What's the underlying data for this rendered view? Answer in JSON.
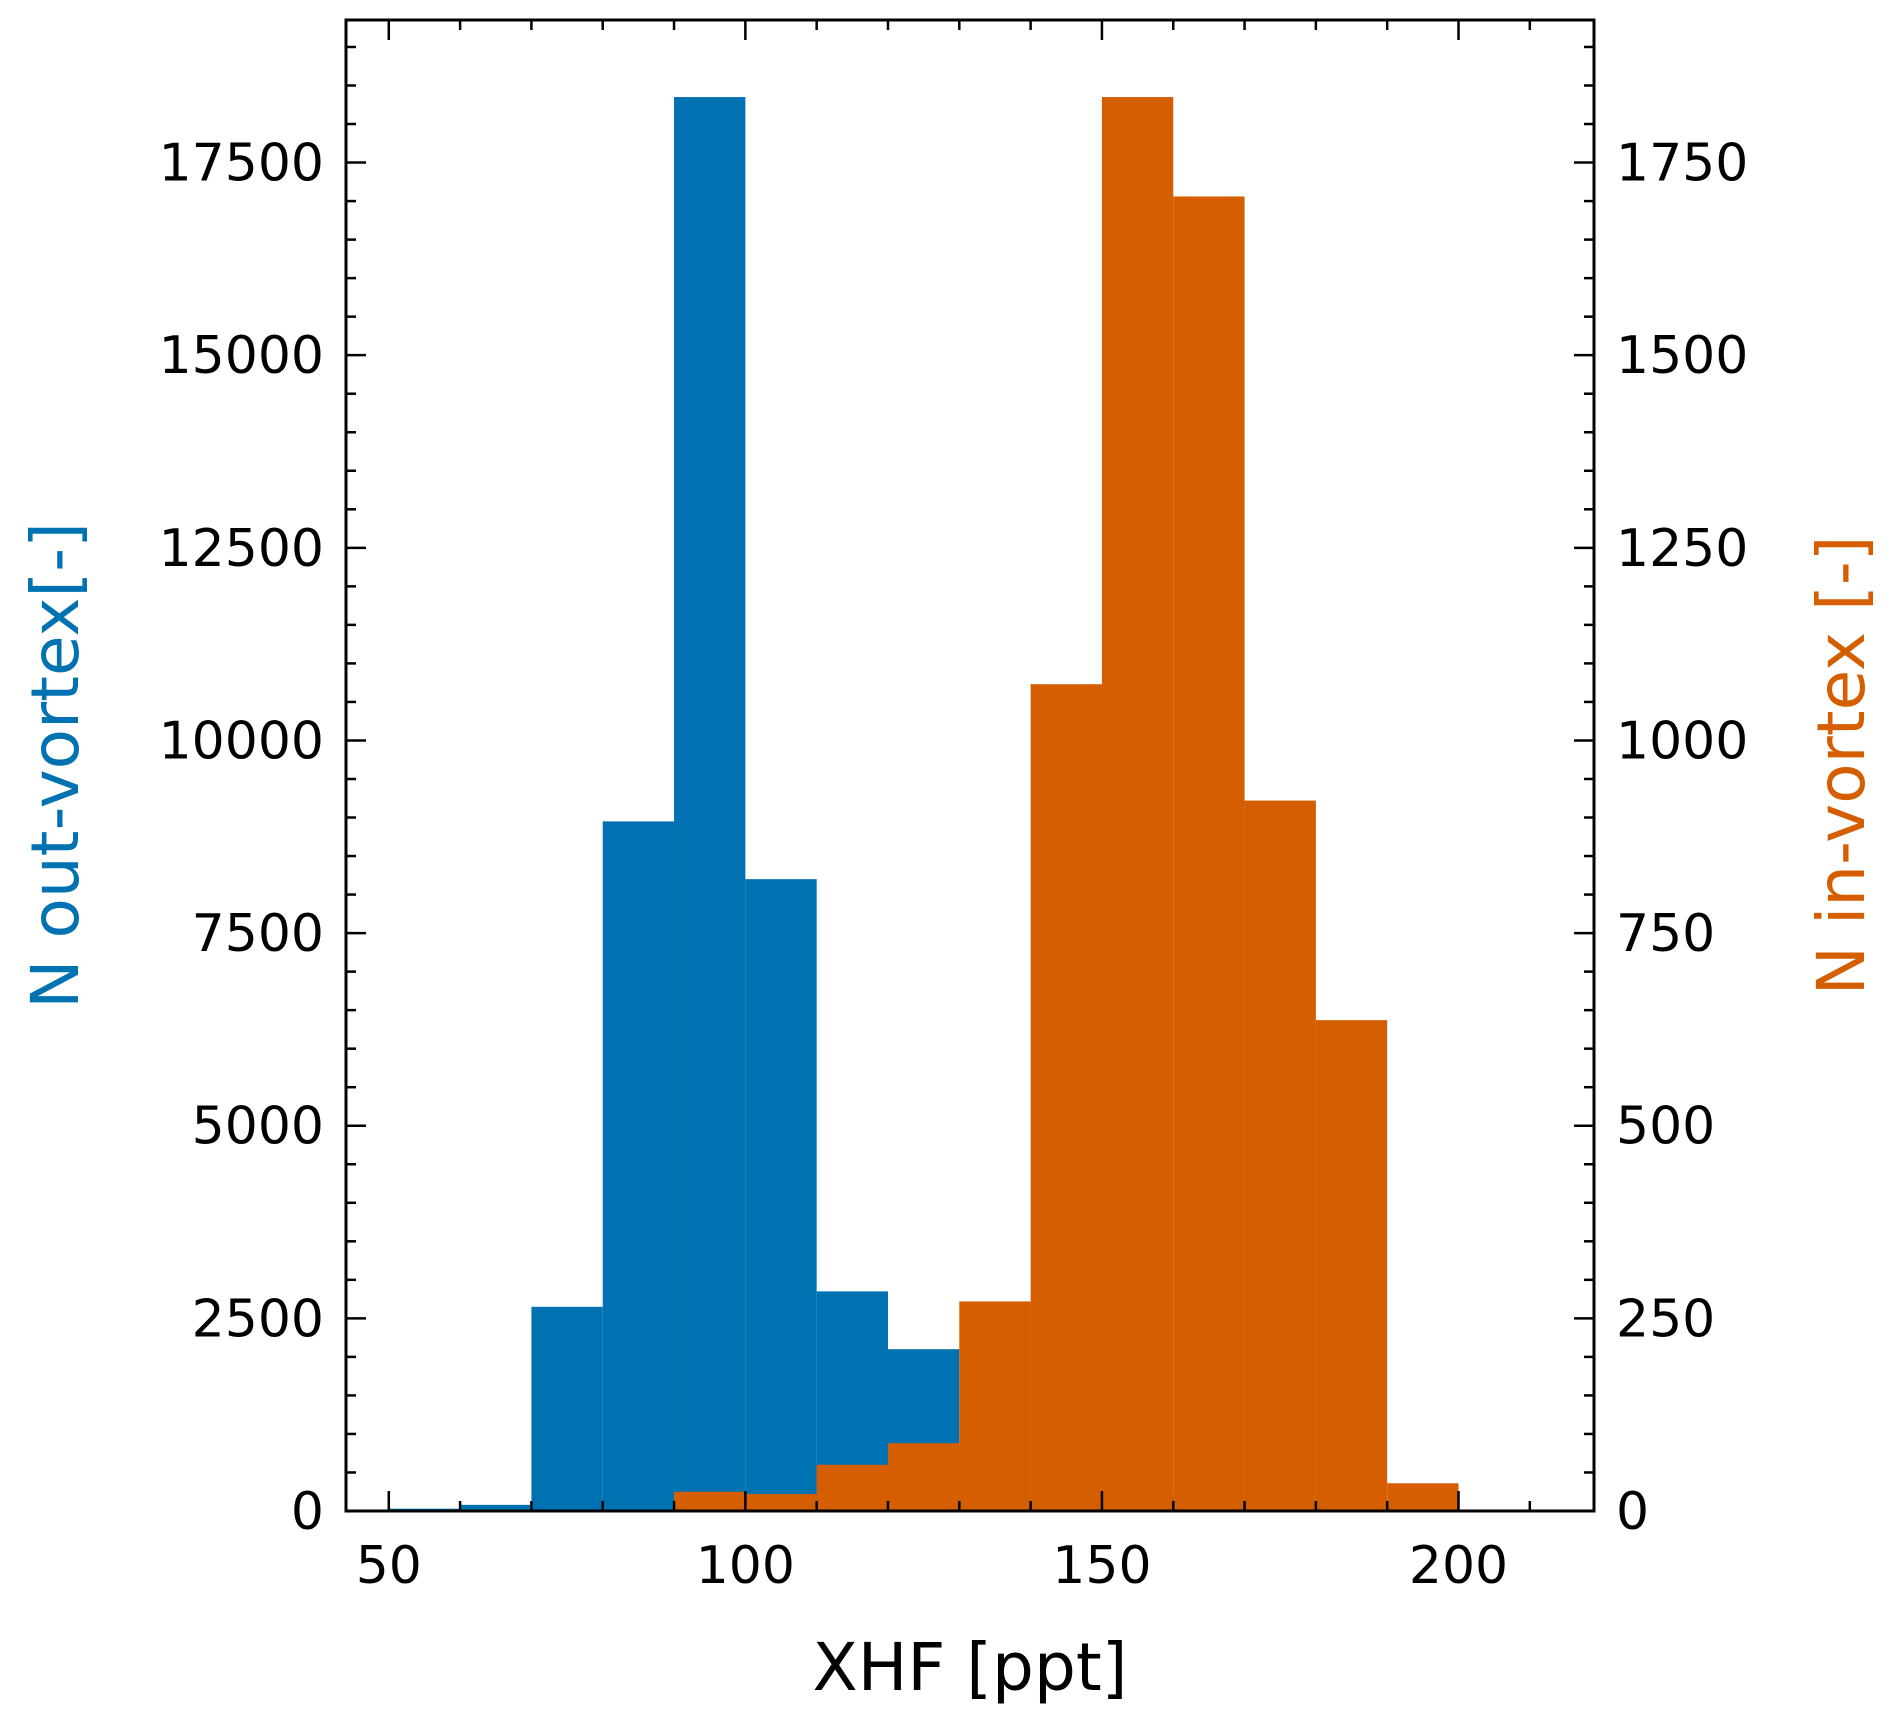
{
  "chart_data": {
    "type": "bar",
    "xlabel": "XHF [ppt]",
    "ylabel_left": "N out-vortex[-]",
    "ylabel_right": "N in-vortex [-]",
    "xlim": [
      44,
      219
    ],
    "ylim_left": [
      0,
      19350
    ],
    "ylim_right": [
      0,
      1935
    ],
    "xticks": [
      50,
      100,
      150,
      200
    ],
    "yticks_left": [
      0,
      2500,
      5000,
      7500,
      10000,
      12500,
      15000,
      17500
    ],
    "yticks_right": [
      0,
      250,
      500,
      750,
      1000,
      1250,
      1500,
      1750
    ],
    "bin_edges": [
      50,
      60,
      70,
      80,
      90,
      100,
      110,
      120,
      130,
      140,
      150,
      160,
      170,
      180,
      190,
      200,
      210
    ],
    "series": [
      {
        "name": "out-vortex",
        "axis": "left",
        "color": "#0072b2",
        "values": [
          30,
          80,
          2650,
          8950,
          18350,
          8200,
          2850,
          2100,
          200,
          120,
          200,
          80,
          30,
          10,
          5,
          5
        ]
      },
      {
        "name": "in-vortex",
        "axis": "right",
        "color": "#d55e00",
        "values": [
          0,
          0,
          0,
          0,
          25,
          22,
          60,
          88,
          272,
          1073,
          1835,
          1706,
          922,
          637,
          36,
          0
        ]
      }
    ],
    "colors": {
      "left_axis_label": "#0072b2",
      "right_axis_label": "#d55e00",
      "frame": "#000000"
    }
  }
}
